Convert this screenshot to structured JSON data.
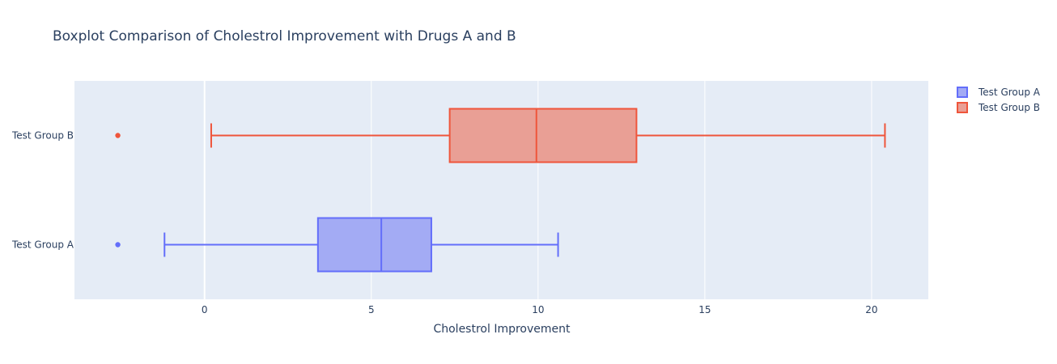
{
  "chart_data": {
    "type": "box",
    "title": "Boxplot Comparison of Cholestrol Improvement with Drugs A and B",
    "xlabel": "Cholestrol Improvement",
    "ylabel": "",
    "xlim": [
      -3.9,
      21.7
    ],
    "xticks": [
      0,
      5,
      10,
      15,
      20
    ],
    "categories": [
      "Test Group A",
      "Test Group B"
    ],
    "grid": true,
    "legend_position": "top-right",
    "series": [
      {
        "name": "Test Group A",
        "color": "#636efa",
        "fill": "#a3abf4",
        "lower_whisker": -1.2,
        "q1": 3.4,
        "median": 5.3,
        "q3": 6.8,
        "upper_whisker": 10.6,
        "outliers": [
          -2.6
        ]
      },
      {
        "name": "Test Group B",
        "color": "#ef553b",
        "fill": "#e99f95",
        "lower_whisker": 0.2,
        "q1": 7.35,
        "median": 9.95,
        "q3": 12.95,
        "upper_whisker": 20.4,
        "outliers": [
          -2.6
        ]
      }
    ]
  }
}
